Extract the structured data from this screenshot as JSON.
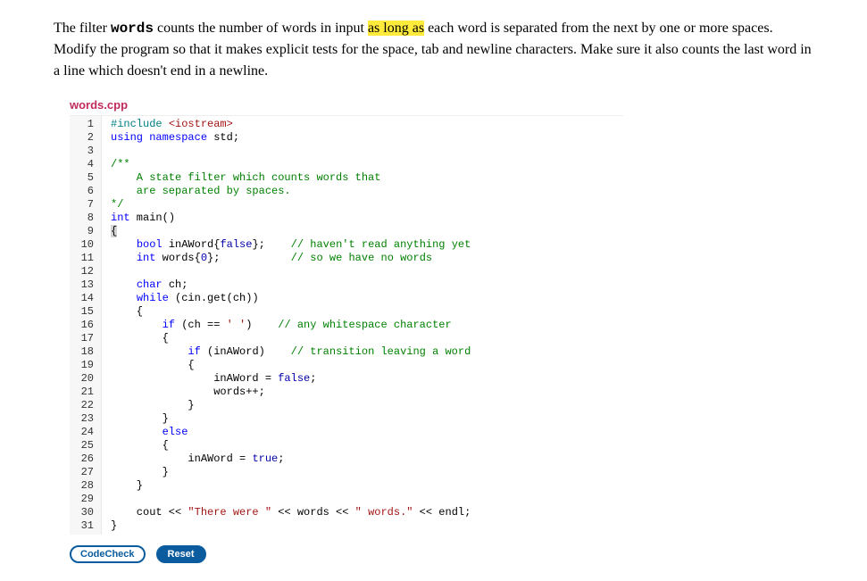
{
  "instruction": {
    "pre": "The filter ",
    "code1": "words",
    "mid1": " counts the number of words in input ",
    "highlight": "as long as",
    "post": " each word is separated from the next by one or more spaces. Modify the program so that it makes explicit tests for the space, tab and newline characters. Make sure it also counts the last word in a line which doesn't end in a newline."
  },
  "filename": "words.cpp",
  "code": {
    "lines": [
      {
        "n": 1,
        "segments": [
          {
            "cls": "c-preproc",
            "t": "#include"
          },
          {
            "cls": "",
            "t": " "
          },
          {
            "cls": "c-string",
            "t": "<iostream>"
          }
        ]
      },
      {
        "n": 2,
        "segments": [
          {
            "cls": "c-keyword",
            "t": "using"
          },
          {
            "cls": "",
            "t": " "
          },
          {
            "cls": "c-keyword",
            "t": "namespace"
          },
          {
            "cls": "",
            "t": " std;"
          }
        ]
      },
      {
        "n": 3,
        "segments": [
          {
            "cls": "",
            "t": ""
          }
        ]
      },
      {
        "n": 4,
        "segments": [
          {
            "cls": "c-comment",
            "t": "/**"
          }
        ]
      },
      {
        "n": 5,
        "segments": [
          {
            "cls": "c-comment",
            "t": "    A state filter which counts words that"
          }
        ]
      },
      {
        "n": 6,
        "segments": [
          {
            "cls": "c-comment",
            "t": "    are separated by spaces."
          }
        ]
      },
      {
        "n": 7,
        "segments": [
          {
            "cls": "c-comment",
            "t": "*/"
          }
        ]
      },
      {
        "n": 8,
        "segments": [
          {
            "cls": "c-type",
            "t": "int"
          },
          {
            "cls": "",
            "t": " main()"
          }
        ]
      },
      {
        "n": 9,
        "segments": [
          {
            "cls": "brace-hl",
            "t": "{"
          }
        ]
      },
      {
        "n": 10,
        "segments": [
          {
            "cls": "",
            "t": "    "
          },
          {
            "cls": "c-type",
            "t": "bool"
          },
          {
            "cls": "",
            "t": " inAWord{"
          },
          {
            "cls": "c-bool",
            "t": "false"
          },
          {
            "cls": "",
            "t": "};    "
          },
          {
            "cls": "c-comment",
            "t": "// haven't read anything yet"
          }
        ]
      },
      {
        "n": 11,
        "segments": [
          {
            "cls": "",
            "t": "    "
          },
          {
            "cls": "c-type",
            "t": "int"
          },
          {
            "cls": "",
            "t": " words{"
          },
          {
            "cls": "c-builtin",
            "t": "0"
          },
          {
            "cls": "",
            "t": "};           "
          },
          {
            "cls": "c-comment",
            "t": "// so we have no words"
          }
        ]
      },
      {
        "n": 12,
        "segments": [
          {
            "cls": "",
            "t": ""
          }
        ]
      },
      {
        "n": 13,
        "segments": [
          {
            "cls": "",
            "t": "    "
          },
          {
            "cls": "c-type",
            "t": "char"
          },
          {
            "cls": "",
            "t": " ch;"
          }
        ]
      },
      {
        "n": 14,
        "segments": [
          {
            "cls": "",
            "t": "    "
          },
          {
            "cls": "c-keyword",
            "t": "while"
          },
          {
            "cls": "",
            "t": " (cin.get(ch))"
          }
        ]
      },
      {
        "n": 15,
        "segments": [
          {
            "cls": "",
            "t": "    {"
          }
        ]
      },
      {
        "n": 16,
        "segments": [
          {
            "cls": "",
            "t": "        "
          },
          {
            "cls": "c-keyword",
            "t": "if"
          },
          {
            "cls": "",
            "t": " (ch == "
          },
          {
            "cls": "c-string",
            "t": "' '"
          },
          {
            "cls": "",
            "t": ")    "
          },
          {
            "cls": "c-comment",
            "t": "// any whitespace character"
          }
        ]
      },
      {
        "n": 17,
        "segments": [
          {
            "cls": "",
            "t": "        {"
          }
        ]
      },
      {
        "n": 18,
        "segments": [
          {
            "cls": "",
            "t": "            "
          },
          {
            "cls": "c-keyword",
            "t": "if"
          },
          {
            "cls": "",
            "t": " (inAWord)    "
          },
          {
            "cls": "c-comment",
            "t": "// transition leaving a word"
          }
        ]
      },
      {
        "n": 19,
        "segments": [
          {
            "cls": "",
            "t": "            {"
          }
        ]
      },
      {
        "n": 20,
        "segments": [
          {
            "cls": "",
            "t": "                inAWord = "
          },
          {
            "cls": "c-bool",
            "t": "false"
          },
          {
            "cls": "",
            "t": ";"
          }
        ]
      },
      {
        "n": 21,
        "segments": [
          {
            "cls": "",
            "t": "                words++;"
          }
        ]
      },
      {
        "n": 22,
        "segments": [
          {
            "cls": "",
            "t": "            }"
          }
        ]
      },
      {
        "n": 23,
        "segments": [
          {
            "cls": "",
            "t": "        }"
          }
        ]
      },
      {
        "n": 24,
        "segments": [
          {
            "cls": "",
            "t": "        "
          },
          {
            "cls": "c-keyword",
            "t": "else"
          }
        ]
      },
      {
        "n": 25,
        "segments": [
          {
            "cls": "",
            "t": "        {"
          }
        ]
      },
      {
        "n": 26,
        "segments": [
          {
            "cls": "",
            "t": "            inAWord = "
          },
          {
            "cls": "c-bool",
            "t": "true"
          },
          {
            "cls": "",
            "t": ";"
          }
        ]
      },
      {
        "n": 27,
        "segments": [
          {
            "cls": "",
            "t": "        }"
          }
        ]
      },
      {
        "n": 28,
        "segments": [
          {
            "cls": "",
            "t": "    }"
          }
        ]
      },
      {
        "n": 29,
        "segments": [
          {
            "cls": "",
            "t": ""
          }
        ]
      },
      {
        "n": 30,
        "segments": [
          {
            "cls": "",
            "t": "    cout << "
          },
          {
            "cls": "c-string",
            "t": "\"There were \""
          },
          {
            "cls": "",
            "t": " << words << "
          },
          {
            "cls": "c-string",
            "t": "\" words.\""
          },
          {
            "cls": "",
            "t": " << endl;"
          }
        ]
      },
      {
        "n": 31,
        "segments": [
          {
            "cls": "",
            "t": "}"
          }
        ]
      }
    ]
  },
  "buttons": {
    "codecheck": "CodeCheck",
    "reset": "Reset"
  }
}
